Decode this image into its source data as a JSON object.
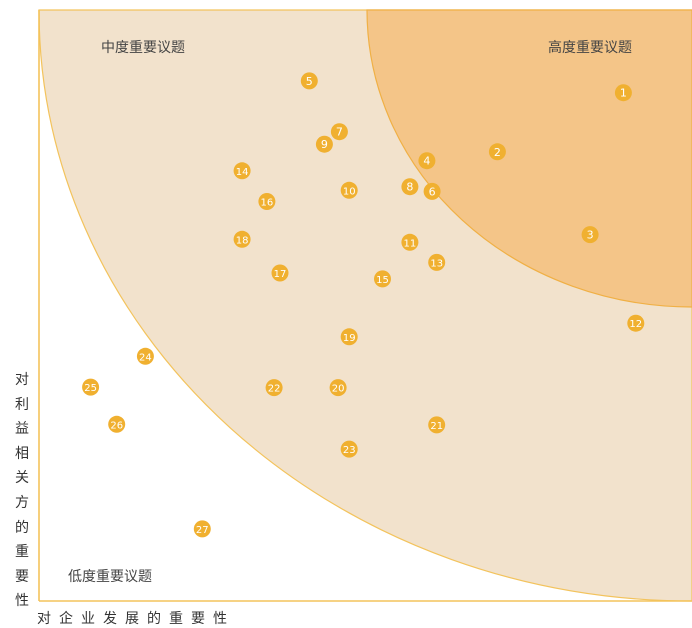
{
  "colors": {
    "axis": "#f3c35c",
    "outer_zone": "#f2e2cc",
    "inner_zone": "#f4c588",
    "inner_zone_edge": "#f0b045",
    "bubble": "#f0b030",
    "bubble_text": "#ffffff"
  },
  "chart_data": {
    "type": "scatter",
    "title": "",
    "xlabel": "对企业发展的重要性",
    "ylabel": "对利益相关方的重要性",
    "xlim": [
      0,
      100
    ],
    "ylim": [
      0,
      100
    ],
    "grid": false,
    "zones": [
      {
        "label": "低度重要议题",
        "position": "bottom-left"
      },
      {
        "label": "中度重要议题",
        "position": "top-left"
      },
      {
        "label": "高度重要议题",
        "position": "top-right"
      }
    ],
    "points": [
      {
        "label": "1",
        "x": 89.5,
        "y": 86
      },
      {
        "label": "2",
        "x": 70.2,
        "y": 76
      },
      {
        "label": "3",
        "x": 84.4,
        "y": 62
      },
      {
        "label": "4",
        "x": 59.4,
        "y": 74.5
      },
      {
        "label": "5",
        "x": 41.4,
        "y": 88
      },
      {
        "label": "6",
        "x": 60.2,
        "y": 69.3
      },
      {
        "label": "7",
        "x": 46,
        "y": 79.4
      },
      {
        "label": "8",
        "x": 56.8,
        "y": 70.1
      },
      {
        "label": "9",
        "x": 43.7,
        "y": 77.3
      },
      {
        "label": "10",
        "x": 47.5,
        "y": 69.5
      },
      {
        "label": "11",
        "x": 56.8,
        "y": 60.7
      },
      {
        "label": "12",
        "x": 91.4,
        "y": 47
      },
      {
        "label": "13",
        "x": 60.9,
        "y": 57.3
      },
      {
        "label": "14",
        "x": 31.1,
        "y": 72.8
      },
      {
        "label": "15",
        "x": 52.6,
        "y": 54.5
      },
      {
        "label": "16",
        "x": 34.9,
        "y": 67.6
      },
      {
        "label": "17",
        "x": 36.9,
        "y": 55.5
      },
      {
        "label": "18",
        "x": 31.1,
        "y": 61.2
      },
      {
        "label": "19",
        "x": 47.5,
        "y": 44.7
      },
      {
        "label": "20",
        "x": 45.8,
        "y": 36.1
      },
      {
        "label": "21",
        "x": 60.9,
        "y": 29.8
      },
      {
        "label": "22",
        "x": 36,
        "y": 36.1
      },
      {
        "label": "23",
        "x": 47.5,
        "y": 25.7
      },
      {
        "label": "24",
        "x": 16.3,
        "y": 41.4
      },
      {
        "label": "25",
        "x": 7.9,
        "y": 36.2
      },
      {
        "label": "26",
        "x": 11.9,
        "y": 29.9
      },
      {
        "label": "27",
        "x": 25,
        "y": 12.2
      }
    ]
  }
}
